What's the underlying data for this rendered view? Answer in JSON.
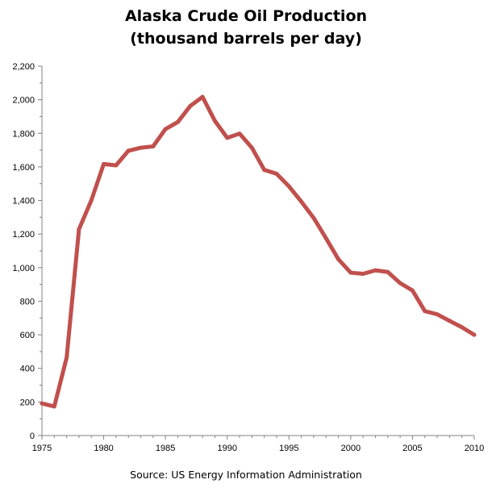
{
  "chart_data": {
    "type": "line",
    "title": "Alaska Crude Oil Production",
    "subtitle": "(thousand barrels per day)",
    "source": "Source: US Energy Information Administration",
    "xlabel": "",
    "ylabel": "",
    "xlim": [
      1975,
      2010
    ],
    "ylim": [
      0,
      2200
    ],
    "x_ticks": [
      1975,
      1980,
      1985,
      1990,
      1995,
      2000,
      2005,
      2010
    ],
    "x_tick_labels": [
      "1975",
      "1980",
      "1985",
      "1990",
      "1995",
      "2000",
      "2005",
      "2010"
    ],
    "y_ticks": [
      0,
      200,
      400,
      600,
      800,
      1000,
      1200,
      1400,
      1600,
      1800,
      2000,
      2200
    ],
    "y_tick_labels": [
      "0",
      "200",
      "400",
      "600",
      "800",
      "1,000",
      "1,200",
      "1,400",
      "1,600",
      "1,800",
      "2,000",
      "2,200"
    ],
    "grid": false,
    "legend": "none",
    "line_color": "#c0504d",
    "series": [
      {
        "x": [
          1975,
          1976,
          1977,
          1978,
          1979,
          1980,
          1981,
          1982,
          1983,
          1984,
          1985,
          1986,
          1987,
          1988,
          1989,
          1990,
          1991,
          1992,
          1993,
          1994,
          1995,
          1996,
          1997,
          1998,
          1999,
          2000,
          2001,
          2002,
          2003,
          2004,
          2005,
          2006,
          2007,
          2008,
          2009,
          2010
        ],
        "values": [
          191,
          173,
          464,
          1229,
          1401,
          1617,
          1609,
          1696,
          1714,
          1722,
          1825,
          1867,
          1962,
          2017,
          1874,
          1773,
          1798,
          1714,
          1582,
          1559,
          1484,
          1393,
          1296,
          1175,
          1050,
          970,
          963,
          984,
          974,
          908,
          864,
          741,
          722,
          683,
          645,
          600
        ]
      }
    ]
  }
}
